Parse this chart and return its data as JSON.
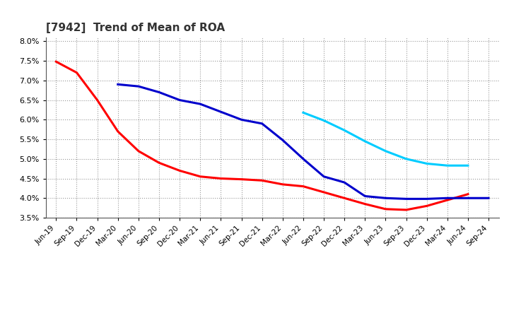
{
  "title": "[7942]  Trend of Mean of ROA",
  "ylim": [
    0.035,
    0.081
  ],
  "yticks": [
    0.035,
    0.04,
    0.045,
    0.05,
    0.055,
    0.06,
    0.065,
    0.07,
    0.075,
    0.08
  ],
  "x_labels": [
    "Jun-19",
    "Sep-19",
    "Dec-19",
    "Mar-20",
    "Jun-20",
    "Sep-20",
    "Dec-20",
    "Mar-21",
    "Jun-21",
    "Sep-21",
    "Dec-21",
    "Mar-22",
    "Jun-22",
    "Sep-22",
    "Dec-22",
    "Mar-23",
    "Jun-23",
    "Sep-23",
    "Dec-23",
    "Mar-24",
    "Jun-24",
    "Sep-24"
  ],
  "series_3yr": {
    "color": "#FF0000",
    "data_x": [
      0,
      1,
      2,
      3,
      4,
      5,
      6,
      7,
      8,
      9,
      10,
      11,
      12,
      13,
      14,
      15,
      16,
      17,
      18,
      19,
      20
    ],
    "data_y": [
      0.0748,
      0.072,
      0.065,
      0.057,
      0.052,
      0.049,
      0.047,
      0.0455,
      0.045,
      0.0448,
      0.0445,
      0.0435,
      0.043,
      0.0415,
      0.04,
      0.0385,
      0.0372,
      0.037,
      0.038,
      0.0395,
      0.041
    ]
  },
  "series_5yr": {
    "color": "#0000CC",
    "data_x": [
      3,
      4,
      5,
      6,
      7,
      8,
      9,
      10,
      11,
      12,
      13,
      14,
      15,
      16,
      17,
      18,
      19,
      20,
      21
    ],
    "data_y": [
      0.069,
      0.0685,
      0.067,
      0.065,
      0.064,
      0.062,
      0.06,
      0.059,
      0.0548,
      0.05,
      0.0455,
      0.044,
      0.0405,
      0.04,
      0.0398,
      0.0398,
      0.04,
      0.04,
      0.04
    ]
  },
  "series_7yr": {
    "color": "#00CCFF",
    "data_x": [
      12,
      13,
      14,
      15,
      16,
      17,
      18,
      19,
      20
    ],
    "data_y": [
      0.0618,
      0.0598,
      0.0573,
      0.0545,
      0.052,
      0.05,
      0.0488,
      0.0483,
      0.0483
    ]
  },
  "series_10yr": {
    "color": "#008000",
    "data_x": [],
    "data_y": []
  },
  "background_color": "#ffffff",
  "grid_color": "#aaaaaa",
  "title_fontsize": 11
}
